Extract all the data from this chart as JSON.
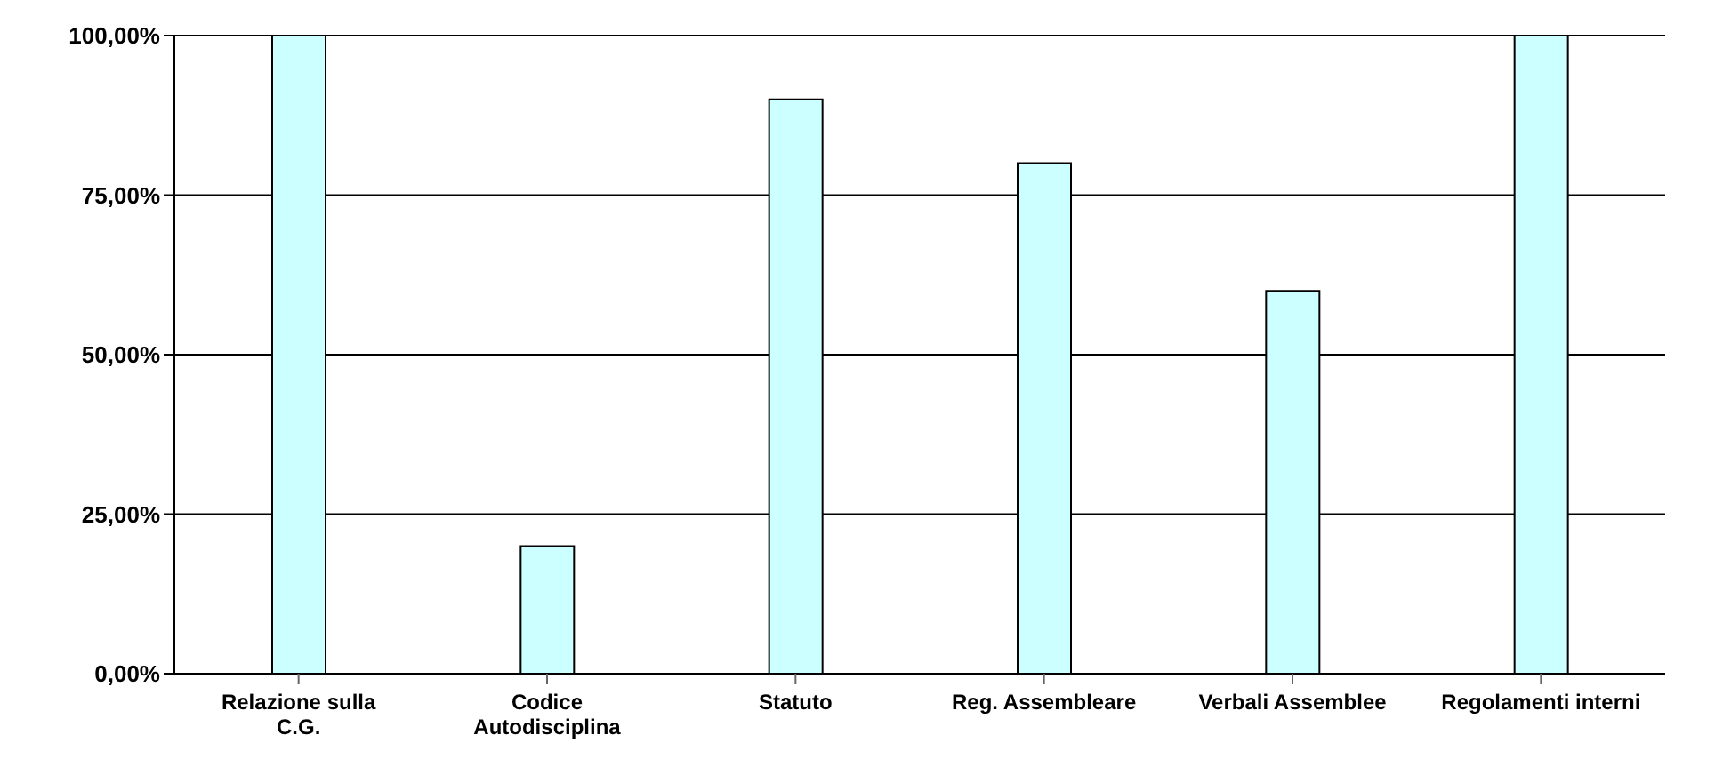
{
  "chart_data": {
    "type": "bar",
    "categories": [
      "Relazione sulla C.G.",
      "Codice Autodisciplina",
      "Statuto",
      "Reg. Assembleare",
      "Verbali Assemblee",
      "Regolamenti interni"
    ],
    "values": [
      100,
      20,
      90,
      80,
      60,
      100
    ],
    "color": "#ccffff",
    "ylim": [
      0,
      100
    ],
    "yticks": [
      {
        "value": 0,
        "label": "0,00%"
      },
      {
        "value": 25,
        "label": "25,00%"
      },
      {
        "value": 50,
        "label": "50,00%"
      },
      {
        "value": 75,
        "label": "75,00%"
      },
      {
        "value": 100,
        "label": "100,00%"
      }
    ],
    "grid": "y"
  }
}
